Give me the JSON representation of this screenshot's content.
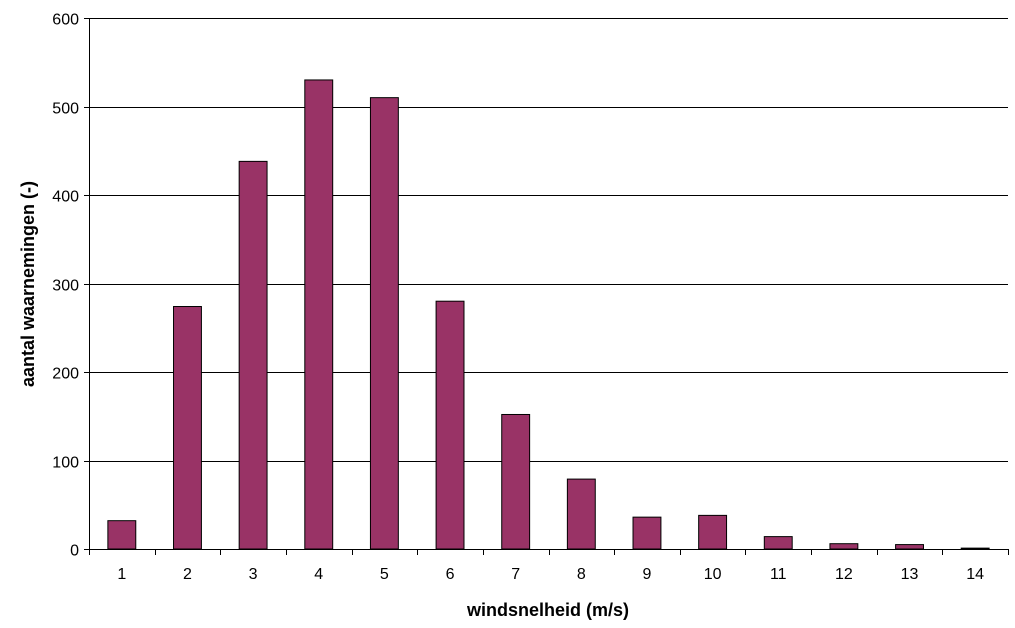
{
  "chart_data": {
    "type": "bar",
    "categories": [
      "1",
      "2",
      "3",
      "4",
      "5",
      "6",
      "7",
      "8",
      "9",
      "10",
      "11",
      "12",
      "13",
      "14"
    ],
    "values": [
      32,
      274,
      438,
      530,
      510,
      280,
      152,
      79,
      36,
      38,
      14,
      6,
      5,
      1
    ],
    "xlabel": "windsnelheid (m/s)",
    "ylabel": "aantal waarnemingen (-)",
    "ylim": [
      0,
      600
    ],
    "yticks": [
      0,
      100,
      200,
      300,
      400,
      500,
      600
    ],
    "grid": true,
    "legend": "none",
    "bar_color": "#993366",
    "bar_edge_color": "#000000",
    "grid_color": "#000000"
  }
}
